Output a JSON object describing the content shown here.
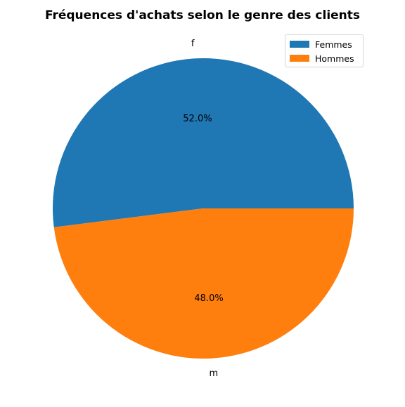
{
  "chart_data": {
    "type": "pie",
    "title": "Fréquences d'achats selon le genre des clients",
    "categories": [
      "f",
      "m"
    ],
    "values": [
      52.0,
      48.0
    ],
    "percent_labels": [
      "52.0%",
      "48.0%"
    ],
    "colors": [
      "#1f77b4",
      "#ff7f0e"
    ],
    "legend": {
      "placement": "top-right",
      "entries": [
        "Femmes",
        "Hommes"
      ]
    }
  }
}
